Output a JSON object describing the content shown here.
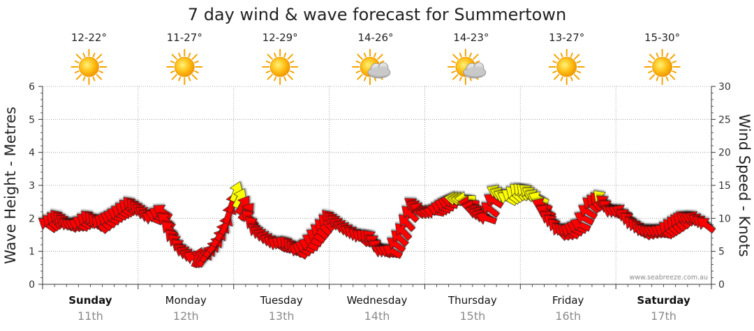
{
  "title": "7 day wind & wave forecast for Summertown",
  "watermark": "www.seabreeze.com.au",
  "chart_data": {
    "type": "line",
    "title": "7 day wind & wave forecast for Summertown",
    "ylabel_left": "Wave Height - Metres",
    "ylabel_right": "Wind Speed - Knots",
    "ylim_left": [
      0,
      6
    ],
    "ylim_right": [
      0,
      30
    ],
    "yticks_left": [
      "0",
      "1",
      "2",
      "3",
      "4",
      "5",
      "6"
    ],
    "yticks_right": [
      "0",
      "5",
      "10",
      "15",
      "20",
      "25",
      "30"
    ],
    "days": [
      {
        "name": "Sunday",
        "date": "11th",
        "temp": "12-22°",
        "weather": "sunny",
        "weekend": true
      },
      {
        "name": "Monday",
        "date": "12th",
        "temp": "11-27°",
        "weather": "sunny",
        "weekend": false
      },
      {
        "name": "Tuesday",
        "date": "13th",
        "temp": "12-29°",
        "weather": "sunny",
        "weekend": false
      },
      {
        "name": "Wednesday",
        "date": "14th",
        "temp": "14-26°",
        "weather": "partly-cloudy",
        "weekend": false
      },
      {
        "name": "Thursday",
        "date": "15th",
        "temp": "14-23°",
        "weather": "partly-cloudy",
        "weekend": false
      },
      {
        "name": "Friday",
        "date": "16th",
        "temp": "13-27°",
        "weather": "sunny",
        "weekend": false
      },
      {
        "name": "Saturday",
        "date": "17th",
        "temp": "15-30°",
        "weather": "sunny",
        "weekend": true
      }
    ],
    "series": [
      {
        "name": "Wind Speed (knots)",
        "hours_step": 3,
        "values": [
          9,
          10,
          9,
          9,
          10,
          9,
          10,
          11,
          12,
          11,
          10,
          11,
          7,
          5,
          4,
          4,
          6,
          9,
          14,
          11,
          8,
          7,
          6,
          6,
          5,
          6,
          8,
          10,
          9,
          8,
          7,
          7,
          5,
          5,
          8,
          12,
          11,
          11,
          12,
          13,
          13,
          11,
          10,
          14,
          13,
          14,
          14,
          13,
          10,
          8,
          8,
          9,
          12,
          13,
          11,
          11,
          9,
          8,
          8,
          8,
          9,
          10,
          10,
          9
        ],
        "arrow_color_rule": "red below 13 knots, yellow from 13 knots",
        "arrow_direction": "mostly from the south-east, turning south-west to west mid-week"
      }
    ]
  }
}
